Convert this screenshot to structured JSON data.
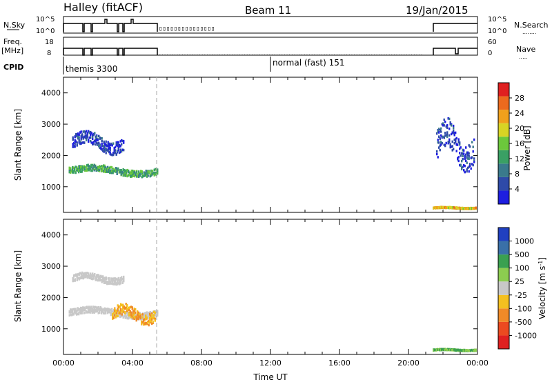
{
  "header": {
    "title": "Halley (fitACF)",
    "beam": "Beam 11",
    "date": "19/Jan/2015"
  },
  "status_panels": {
    "nsky": {
      "label": "N.Sky",
      "ticks": [
        "10^5",
        "10^0"
      ]
    },
    "nsearch": {
      "label": "N.Search",
      "ticks": [
        "10^5",
        "10^0"
      ]
    },
    "freq": {
      "label": "Freq.",
      "unit": "[MHz]",
      "ticks": [
        "18",
        "8"
      ]
    },
    "nave": {
      "label": "Nave",
      "ticks": [
        "60",
        "0"
      ]
    },
    "cpid": {
      "label": "CPID",
      "modes": [
        {
          "name": "themis 3300",
          "start": 0.0,
          "end": 12.0
        },
        {
          "name": "normal (fast) 151",
          "start": 12.0,
          "end": 24.0
        }
      ]
    }
  },
  "chart_data": [
    {
      "type": "heatmap",
      "title": "",
      "ylabel": "Slant Range [km]",
      "xlabel": "",
      "xlim": [
        0,
        24
      ],
      "ylim": [
        180,
        4500
      ],
      "yticks": [
        1000,
        2000,
        3000,
        4000
      ],
      "colorbar": {
        "label": "Power [dB]",
        "ticks": [
          4,
          8,
          12,
          16,
          20,
          24,
          28
        ],
        "range": [
          0,
          30
        ]
      },
      "data_intervals_UT": [
        [
          0.0,
          5.4
        ],
        [
          21.4,
          24.0
        ]
      ],
      "features": [
        {
          "desc": "band",
          "t": [
            0.3,
            5.4
          ],
          "range_km": [
            1300,
            1700
          ],
          "value_dB": 12
        },
        {
          "desc": "band",
          "t": [
            0.5,
            3.5
          ],
          "range_km": [
            2000,
            2800
          ],
          "value_dB": 4
        },
        {
          "desc": "near range",
          "t": [
            21.4,
            23.9
          ],
          "range_km": [
            280,
            350
          ],
          "value_dB": 20
        },
        {
          "desc": "band",
          "t": [
            21.6,
            23.8
          ],
          "range_km": [
            1400,
            3200
          ],
          "value_dB": 4
        }
      ]
    },
    {
      "type": "heatmap",
      "title": "",
      "ylabel": "Slant Range [km]",
      "xlabel": "Time UT",
      "xlim": [
        0,
        24
      ],
      "ylim": [
        180,
        4500
      ],
      "yticks": [
        1000,
        2000,
        3000,
        4000
      ],
      "xticks": [
        "00:00",
        "04:00",
        "08:00",
        "12:00",
        "16:00",
        "20:00",
        "00:00"
      ],
      "colorbar": {
        "label": "Velocity [m s^-1]",
        "ticks": [
          "1000",
          "500",
          "100",
          "25",
          "-25",
          "-100",
          "-500",
          "-1000"
        ]
      },
      "data_intervals_UT": [
        [
          0.0,
          5.4
        ],
        [
          21.4,
          24.0
        ]
      ],
      "features": [
        {
          "desc": "ground scatter band",
          "t": [
            0.3,
            5.4
          ],
          "range_km": [
            1300,
            1700
          ],
          "value": 0
        },
        {
          "desc": "ground scatter band",
          "t": [
            0.5,
            3.5
          ],
          "range_km": [
            2400,
            2800
          ],
          "value": 0
        },
        {
          "desc": "receding patch",
          "t": [
            2.8,
            5.3
          ],
          "range_km": [
            1100,
            1800
          ],
          "value": -100
        },
        {
          "desc": "approaching near range",
          "t": [
            21.4,
            23.9
          ],
          "range_km": [
            280,
            350
          ],
          "value": 100
        }
      ]
    }
  ],
  "colors": {
    "power_scale": [
      "#1e1ee0",
      "#2e4aa8",
      "#3a7a8c",
      "#3aa064",
      "#6cc83c",
      "#d8d424",
      "#f0a01c",
      "#ec6a1e",
      "#e02020"
    ],
    "velocity_scale": [
      "#e02020",
      "#ec4a20",
      "#f08a28",
      "#f4c020",
      "#c8c8c8",
      "#8ccc50",
      "#3aa050",
      "#3a70a8",
      "#2040c0"
    ]
  }
}
